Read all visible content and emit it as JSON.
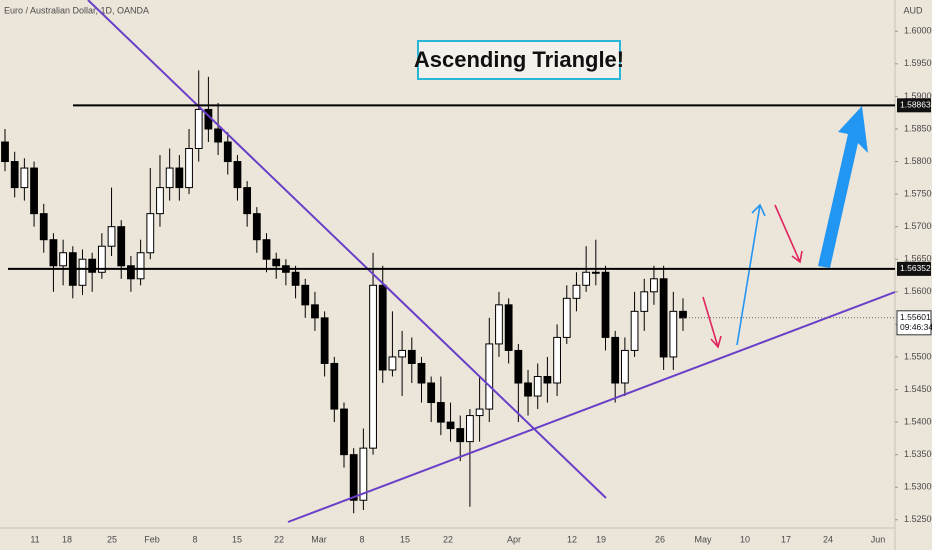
{
  "chart_data": {
    "type": "candlestick",
    "title": "Euro / Australian Dollar, 1D, OANDA",
    "annotation": "Ascending Triangle!",
    "y_axis_label": "AUD",
    "x_labels": [
      "11",
      "18",
      "25",
      "Feb",
      "8",
      "15",
      "22",
      "Mar",
      "8",
      "15",
      "22",
      "Apr",
      "12",
      "19",
      "26",
      "May",
      "10",
      "17",
      "24",
      "Jun"
    ],
    "open": [
      1.583,
      1.58,
      1.576,
      1.579,
      1.572,
      1.568,
      1.564,
      1.566,
      1.561,
      1.565,
      1.563,
      1.567,
      1.57,
      1.564,
      1.562,
      1.566,
      1.572,
      1.576,
      1.579,
      1.576,
      1.582,
      1.588,
      1.585,
      1.583,
      1.58,
      1.576,
      1.572,
      1.568,
      1.565,
      1.564,
      1.563,
      1.561,
      1.558,
      1.556,
      1.549,
      1.542,
      1.535,
      1.528,
      1.536,
      1.561,
      1.548,
      1.55,
      1.551,
      1.549,
      1.546,
      1.543,
      1.54,
      1.539,
      1.537,
      1.541,
      1.542,
      1.552,
      1.558,
      1.551,
      1.546,
      1.544,
      1.547,
      1.546,
      1.553,
      1.559,
      1.561,
      1.563,
      1.563,
      1.553,
      1.546,
      1.551,
      1.557,
      1.56,
      1.562,
      1.55,
      1.557
    ],
    "high": [
      1.585,
      1.5815,
      1.5805,
      1.58,
      1.5735,
      1.569,
      1.568,
      1.567,
      1.5665,
      1.566,
      1.569,
      1.576,
      1.571,
      1.5655,
      1.568,
      1.579,
      1.581,
      1.582,
      1.581,
      1.585,
      1.594,
      1.593,
      1.589,
      1.5845,
      1.581,
      1.577,
      1.573,
      1.569,
      1.566,
      1.565,
      1.564,
      1.562,
      1.56,
      1.557,
      1.55,
      1.543,
      1.536,
      1.539,
      1.566,
      1.564,
      1.557,
      1.554,
      1.553,
      1.55,
      1.547,
      1.547,
      1.543,
      1.541,
      1.542,
      1.547,
      1.556,
      1.56,
      1.559,
      1.552,
      1.548,
      1.549,
      1.55,
      1.555,
      1.561,
      1.563,
      1.567,
      1.568,
      1.564,
      1.554,
      1.553,
      1.56,
      1.562,
      1.564,
      1.564,
      1.56,
      1.559
    ],
    "low": [
      1.5785,
      1.5745,
      1.574,
      1.57,
      1.566,
      1.56,
      1.561,
      1.559,
      1.5595,
      1.56,
      1.562,
      1.5655,
      1.562,
      1.56,
      1.561,
      1.565,
      1.57,
      1.574,
      1.574,
      1.575,
      1.58,
      1.583,
      1.581,
      1.578,
      1.574,
      1.57,
      1.566,
      1.563,
      1.562,
      1.561,
      1.559,
      1.556,
      1.554,
      1.547,
      1.54,
      1.533,
      1.526,
      1.5265,
      1.535,
      1.546,
      1.547,
      1.544,
      1.546,
      1.543,
      1.54,
      1.538,
      1.537,
      1.534,
      1.527,
      1.537,
      1.54,
      1.55,
      1.549,
      1.54,
      1.541,
      1.542,
      1.543,
      1.544,
      1.552,
      1.557,
      1.56,
      1.561,
      1.551,
      1.543,
      1.544,
      1.55,
      1.554,
      1.558,
      1.548,
      1.548,
      1.554
    ],
    "close": [
      1.58,
      1.576,
      1.579,
      1.572,
      1.568,
      1.564,
      1.566,
      1.561,
      1.565,
      1.563,
      1.567,
      1.57,
      1.564,
      1.562,
      1.566,
      1.572,
      1.576,
      1.579,
      1.576,
      1.582,
      1.588,
      1.585,
      1.583,
      1.58,
      1.576,
      1.572,
      1.568,
      1.565,
      1.564,
      1.563,
      1.561,
      1.558,
      1.556,
      1.549,
      1.542,
      1.535,
      1.528,
      1.536,
      1.561,
      1.548,
      1.55,
      1.551,
      1.549,
      1.546,
      1.543,
      1.54,
      1.539,
      1.537,
      1.541,
      1.542,
      1.552,
      1.558,
      1.551,
      1.546,
      1.544,
      1.547,
      1.546,
      1.553,
      1.559,
      1.561,
      1.563,
      1.563,
      1.553,
      1.546,
      1.551,
      1.557,
      1.56,
      1.562,
      1.55,
      1.557,
      1.556
    ],
    "up_color": "#ffffff",
    "down_color": "#000000",
    "hlines": [
      1.58863,
      1.56352
    ],
    "last_price": 1.55601,
    "countdown": "09:46:34",
    "ylim": [
      1.5242,
      1.6048
    ],
    "yticks": [
      {
        "value": 1.525,
        "label": "1.52500"
      },
      {
        "value": 1.53,
        "label": "1.53000"
      },
      {
        "value": 1.535,
        "label": "1.53500"
      },
      {
        "value": 1.54,
        "label": "1.54000"
      },
      {
        "value": 1.545,
        "label": "1.54500"
      },
      {
        "value": 1.55,
        "label": "1.55000"
      },
      {
        "value": 1.555,
        "label": "1.55500"
      },
      {
        "value": 1.56,
        "label": "1.56000"
      },
      {
        "value": 1.565,
        "label": "1.56500"
      },
      {
        "value": 1.57,
        "label": "1.57000"
      },
      {
        "value": 1.575,
        "label": "1.57500"
      },
      {
        "value": 1.58,
        "label": "1.58000"
      },
      {
        "value": 1.585,
        "label": "1.58500"
      },
      {
        "value": 1.59,
        "label": "1.59000"
      },
      {
        "value": 1.595,
        "label": "1.59500"
      },
      {
        "value": 1.6,
        "label": "1.60000"
      }
    ],
    "grid": false
  }
}
